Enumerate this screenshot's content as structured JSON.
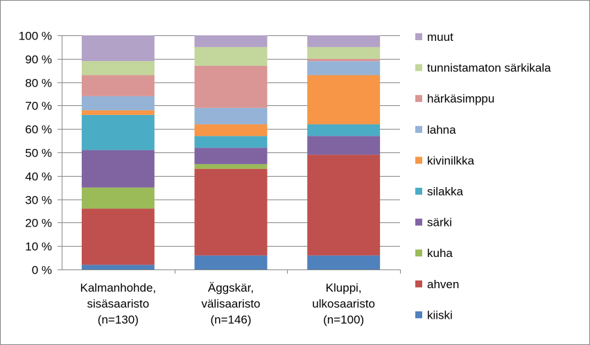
{
  "chart_data": {
    "type": "bar",
    "stacked": true,
    "percent": true,
    "categories": [
      [
        "Kalmanhohde,",
        "sisäsaaristo",
        "(n=130)"
      ],
      [
        "Äggskär,",
        "välisaaristo",
        "(n=146)"
      ],
      [
        "Kluppi,",
        "ulkosaaristo",
        "(n=100)"
      ]
    ],
    "ylim": [
      0,
      100
    ],
    "yticks": [
      "0 %",
      "10 %",
      "20 %",
      "30 %",
      "40 %",
      "50 %",
      "60 %",
      "70 %",
      "80 %",
      "90 %",
      "100 %"
    ],
    "grid": true,
    "legend_position": "right",
    "series": [
      {
        "name": "kiiski",
        "color": "#4F81BD",
        "values": [
          2,
          6,
          6
        ]
      },
      {
        "name": "ahven",
        "color": "#C0504D",
        "values": [
          24,
          37,
          43
        ]
      },
      {
        "name": "kuha",
        "color": "#9BBB59",
        "values": [
          9,
          2,
          0
        ]
      },
      {
        "name": "särki",
        "color": "#8064A2",
        "values": [
          16,
          7,
          8
        ]
      },
      {
        "name": "silakka",
        "color": "#4BACC6",
        "values": [
          15,
          5,
          5
        ]
      },
      {
        "name": "kivinilkka",
        "color": "#F79646",
        "values": [
          2,
          5,
          21
        ]
      },
      {
        "name": "lahna",
        "color": "#95B3D7",
        "values": [
          6,
          7,
          6
        ]
      },
      {
        "name": "härkäsimppu",
        "color": "#D99694",
        "values": [
          9,
          18,
          1
        ]
      },
      {
        "name": "tunnistamaton särkikala",
        "color": "#C3D69B",
        "values": [
          6,
          8,
          5
        ]
      },
      {
        "name": "muut",
        "color": "#B3A2C7",
        "values": [
          11,
          5,
          5
        ]
      }
    ]
  }
}
